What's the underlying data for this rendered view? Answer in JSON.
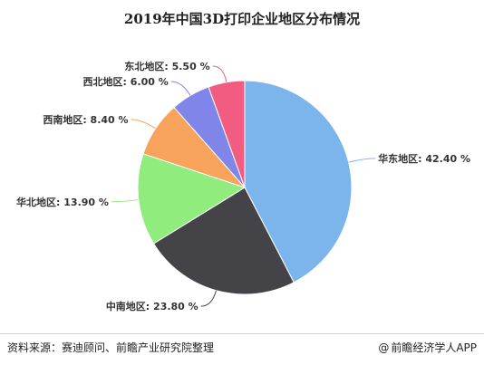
{
  "title": "2019年中国3D打印企业地区分布情况",
  "source": "资料来源：赛迪顾问、前瞻产业研究院整理",
  "brand": {
    "icon": "at-icon",
    "icon_glyph": "@",
    "text": "前瞻经济学人APP"
  },
  "chart_data": {
    "type": "pie",
    "title": "2019年中国3D打印企业地区分布情况",
    "start_angle_deg": 0,
    "direction": "clockwise",
    "label_format": "{name}: {value} %",
    "slices": [
      {
        "name": "华东地区",
        "value": 42.4,
        "color": "#7cb5ec"
      },
      {
        "name": "中南地区",
        "value": 23.8,
        "color": "#434348"
      },
      {
        "name": "华北地区",
        "value": 13.9,
        "color": "#90ed7d"
      },
      {
        "name": "西南地区",
        "value": 8.4,
        "color": "#f7a35c"
      },
      {
        "name": "西北地区",
        "value": 6.0,
        "color": "#8085e9"
      },
      {
        "name": "东北地区",
        "value": 5.5,
        "color": "#f15c80"
      }
    ]
  }
}
